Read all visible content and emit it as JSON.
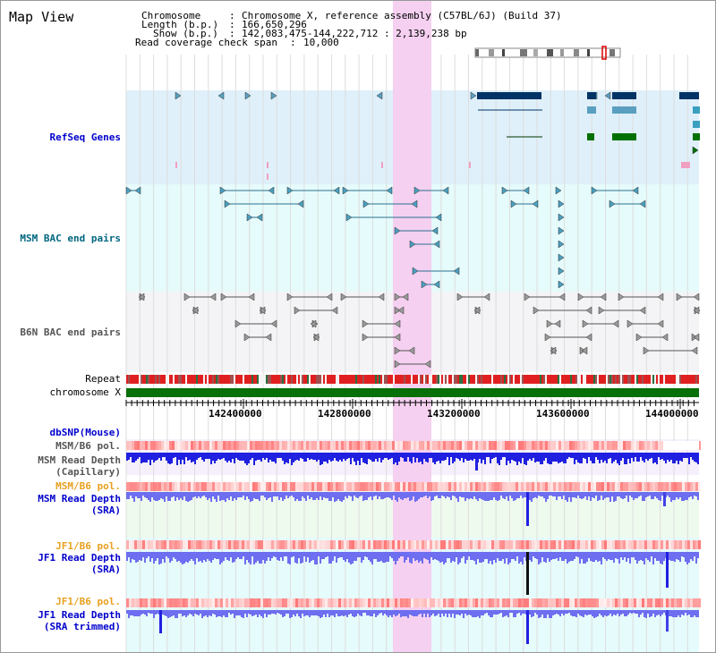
{
  "title": "Map View",
  "header": {
    "chromosome_label": "Chromosome",
    "chromosome_value": "Chromosome X, reference assembly (C57BL/6J) (Build 37)",
    "length_label": "Length (b.p.)",
    "length_value": "166,650,296",
    "show_label": "Show (b.p.)",
    "show_value": "142,083,475-144,222,712 : 2,139,238 bp",
    "span_label": "Read coverage check span",
    "span_value": "10,000",
    "sep": ":"
  },
  "tracks": {
    "refseq": "RefSeq Genes",
    "msm_bac": "MSM BAC end pairs",
    "b6n_bac": "B6N BAC end pairs",
    "repeat": "Repeat",
    "chromosome": "chromosome X",
    "dbsnp": "dbSNP(Mouse)",
    "msm_pol_1": "MSM/B6 pol.",
    "msm_depth_cap": "MSM Read Depth\n(Capillary)",
    "msm_pol_2": "MSM/B6 pol.",
    "msm_depth_sra": "MSM Read Depth\n(SRA)",
    "jf1_pol_1": "JF1/B6 pol.",
    "jf1_depth_sra": "JF1 Read Depth\n(SRA)",
    "jf1_pol_2": "JF1/B6 pol.",
    "jf1_depth_trim": "JF1 Read Depth\n(SRA trimmed)"
  },
  "axis_ticks": [
    "142400000",
    "142800000",
    "143200000",
    "143600000",
    "144000000"
  ],
  "colors": {
    "label_blue": "#0000cc",
    "label_teal": "#006680",
    "label_gray": "#555555",
    "label_orange": "#e8a020",
    "highlight": "#f5d0f0",
    "refseq_bg": "#dff0fa",
    "msm_bac_bg": "#e6fbfb",
    "b6n_bac_bg": "#f4f4f6",
    "chromosome": "#087008",
    "depth_blue": "#6e6ef0"
  }
}
